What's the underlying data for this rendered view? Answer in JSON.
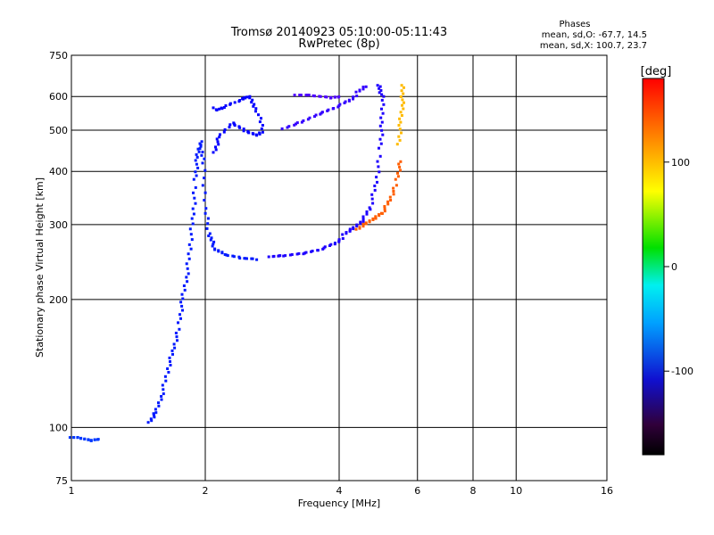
{
  "chart_data": {
    "type": "scatter",
    "title": "Tromsø 20140923 05:10:00-05:11:43",
    "subtitle": "RwPretec (8p)",
    "xlabel": "Frequency [MHz]",
    "ylabel": "Stationary phase Virtual Height [km]",
    "x_scale": "log",
    "y_scale": "log",
    "xlim": [
      1,
      16
    ],
    "ylim": [
      75,
      750
    ],
    "x_ticks": [
      {
        "value": 1,
        "label": "1"
      },
      {
        "value": 2,
        "label": "2"
      },
      {
        "value": 4,
        "label": "4"
      },
      {
        "value": 6,
        "label": "6"
      },
      {
        "value": 8,
        "label": "8"
      },
      {
        "value": 10,
        "label": "10"
      },
      {
        "value": 16,
        "label": "16"
      }
    ],
    "y_ticks": [
      {
        "value": 75,
        "label": "75"
      },
      {
        "value": 100,
        "label": "100"
      },
      {
        "value": 200,
        "label": "200"
      },
      {
        "value": 300,
        "label": "300"
      },
      {
        "value": 400,
        "label": "400"
      },
      {
        "value": 500,
        "label": "500"
      },
      {
        "value": 600,
        "label": "600"
      },
      {
        "value": 750,
        "label": "750"
      }
    ],
    "grid": true,
    "phase_info": {
      "heading": "Phases",
      "line_o": "mean, sd,O: -67.7, 14.5",
      "line_x": "mean, sd,X: 100.7, 23.7"
    },
    "colorbar": {
      "unit": "[deg]",
      "range": [
        -180,
        180
      ],
      "colormap": "rainbow",
      "ticks": [
        {
          "value": 100,
          "label": "100"
        },
        {
          "value": 0,
          "label": "0"
        },
        {
          "value": -100,
          "label": "-100"
        }
      ]
    },
    "traces": [
      {
        "name": "",
        "phase": -90,
        "points": [
          [
            1.0,
            94
          ],
          [
            1.05,
            94
          ],
          [
            1.1,
            93
          ],
          [
            1.15,
            94
          ]
        ]
      },
      {
        "name": "",
        "phase": -100,
        "points": [
          [
            1.5,
            102
          ],
          [
            1.55,
            108
          ],
          [
            1.6,
            120
          ],
          [
            1.65,
            138
          ],
          [
            1.7,
            155
          ],
          [
            1.75,
            175
          ],
          [
            1.78,
            200
          ],
          [
            1.82,
            230
          ],
          [
            1.85,
            270
          ],
          [
            1.88,
            320
          ],
          [
            1.9,
            380
          ],
          [
            1.92,
            430
          ],
          [
            1.95,
            470
          ],
          [
            1.98,
            420
          ],
          [
            2.0,
            330
          ],
          [
            2.05,
            280
          ],
          [
            2.1,
            262
          ],
          [
            2.2,
            255
          ],
          [
            2.4,
            251
          ],
          [
            2.6,
            250
          ]
        ]
      },
      {
        "name": "",
        "phase": -110,
        "points": [
          [
            2.1,
            440
          ],
          [
            2.15,
            480
          ],
          [
            2.3,
            520
          ],
          [
            2.45,
            500
          ],
          [
            2.6,
            490
          ],
          [
            2.7,
            500
          ],
          [
            2.6,
            560
          ],
          [
            2.5,
            600
          ],
          [
            2.4,
            590
          ],
          [
            2.2,
            570
          ],
          [
            2.1,
            560
          ]
        ]
      },
      {
        "name": "",
        "phase": -120,
        "points": [
          [
            2.8,
            250
          ],
          [
            3.0,
            252
          ],
          [
            3.3,
            256
          ],
          [
            3.6,
            262
          ],
          [
            3.9,
            272
          ],
          [
            4.1,
            282
          ],
          [
            4.3,
            292
          ],
          [
            4.5,
            305
          ],
          [
            4.7,
            330
          ],
          [
            4.85,
            380
          ],
          [
            4.95,
            450
          ],
          [
            5.0,
            520
          ],
          [
            5.0,
            600
          ],
          [
            4.9,
            640
          ]
        ]
      },
      {
        "name": "",
        "phase": -130,
        "points": [
          [
            3.0,
            500
          ],
          [
            3.3,
            520
          ],
          [
            3.6,
            545
          ],
          [
            3.9,
            565
          ],
          [
            4.2,
            590
          ],
          [
            4.4,
            610
          ],
          [
            4.6,
            630
          ]
        ]
      },
      {
        "name": "",
        "phase": -140,
        "points": [
          [
            3.2,
            600
          ],
          [
            3.5,
            600
          ],
          [
            3.8,
            595
          ],
          [
            4.0,
            600
          ]
        ]
      },
      {
        "name": "",
        "phase": 140,
        "points": [
          [
            4.4,
            290
          ],
          [
            4.6,
            300
          ],
          [
            4.8,
            310
          ],
          [
            5.0,
            320
          ],
          [
            5.2,
            345
          ],
          [
            5.4,
            380
          ],
          [
            5.5,
            420
          ]
        ]
      },
      {
        "name": "",
        "phase": 100,
        "points": [
          [
            5.45,
            460
          ],
          [
            5.5,
            520
          ],
          [
            5.55,
            580
          ],
          [
            5.55,
            640
          ]
        ]
      }
    ]
  }
}
